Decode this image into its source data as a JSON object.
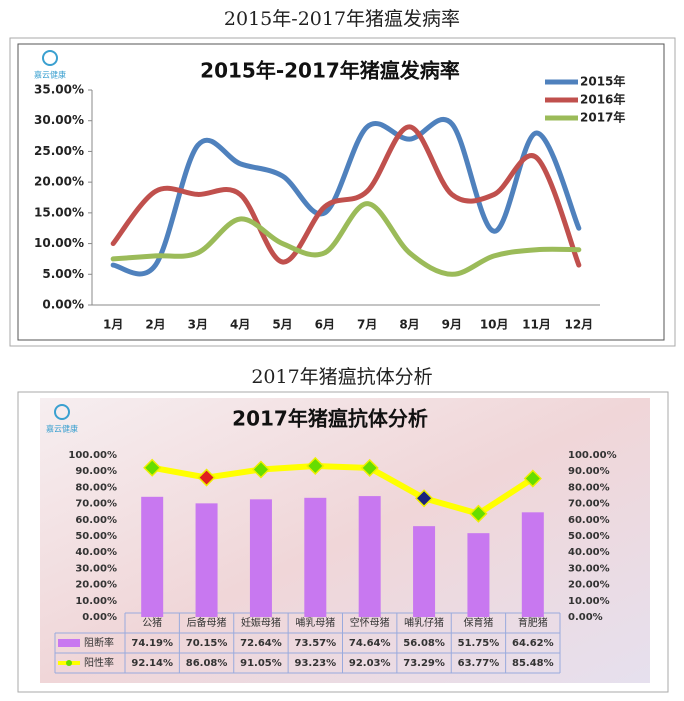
{
  "chart_data": [
    {
      "type": "line",
      "caption": "2015年-2017年猪瘟发病率",
      "title": "2015年-2017年猪瘟发病率",
      "logo_text": "嘉云健康",
      "categories": [
        "1月",
        "2月",
        "3月",
        "4月",
        "5月",
        "6月",
        "7月",
        "8月",
        "9月",
        "10月",
        "11月",
        "12月"
      ],
      "series": [
        {
          "name": "2015年",
          "color": "#4f81bd",
          "values": [
            6.5,
            6.5,
            26,
            23,
            21,
            15,
            29,
            27,
            29.5,
            12,
            28,
            12.5
          ]
        },
        {
          "name": "2016年",
          "color": "#c0504d",
          "values": [
            10,
            18.5,
            18,
            18,
            7,
            16,
            18.5,
            29,
            18,
            18,
            24,
            6.5
          ]
        },
        {
          "name": "2017年",
          "color": "#9bbb59",
          "values": [
            7.5,
            8,
            8.5,
            14,
            10,
            8.5,
            16.5,
            8.5,
            5,
            8,
            9,
            9
          ]
        }
      ],
      "ylim": [
        0,
        35
      ],
      "yticks": [
        {
          "value": 0,
          "label": "0.00%"
        },
        {
          "value": 5,
          "label": "5.00%"
        },
        {
          "value": 10,
          "label": "10.00%"
        },
        {
          "value": 15,
          "label": "15.00%"
        },
        {
          "value": 20,
          "label": "20.00%"
        },
        {
          "value": 25,
          "label": "25.00%"
        },
        {
          "value": 30,
          "label": "30.00%"
        },
        {
          "value": 35,
          "label": "35.00%"
        }
      ],
      "legend": "upper right"
    },
    {
      "type": "bar_line",
      "caption": "2017年猪瘟抗体分析",
      "title": "2017年猪瘟抗体分析",
      "logo_text": "嘉云健康",
      "categories": [
        "公猪",
        "后备母猪",
        "妊娠母猪",
        "哺乳母猪",
        "空怀母猪",
        "哺乳仔猪",
        "保育猪",
        "育肥猪"
      ],
      "series": [
        {
          "name": "阻断率",
          "type": "bar",
          "color": "#c878f0",
          "values": [
            74.19,
            70.15,
            72.64,
            73.57,
            74.64,
            56.08,
            51.75,
            64.62
          ],
          "value_labels": [
            "74.19%",
            "70.15%",
            "72.64%",
            "73.57%",
            "74.64%",
            "56.08%",
            "51.75%",
            "64.62%"
          ]
        },
        {
          "name": "阳性率",
          "type": "line",
          "color": "#ffff00",
          "axis": "y2",
          "values": [
            92.14,
            86.08,
            91.05,
            93.23,
            92.03,
            73.29,
            63.77,
            85.48
          ],
          "value_labels": [
            "92.14%",
            "86.08%",
            "91.05%",
            "93.23%",
            "92.03%",
            "73.29%",
            "63.77%",
            "85.48%"
          ],
          "marker_colors": [
            "#66dd00",
            "#e02020",
            "#66dd00",
            "#66dd00",
            "#66dd00",
            "#1a237e",
            "#66dd00",
            "#66dd00"
          ]
        }
      ],
      "ylim": [
        0,
        100
      ],
      "yticks": [
        {
          "value": 0,
          "label": "0.00%"
        },
        {
          "value": 10,
          "label": "10.00%"
        },
        {
          "value": 20,
          "label": "20.00%"
        },
        {
          "value": 30,
          "label": "30.00%"
        },
        {
          "value": 40,
          "label": "40.00%"
        },
        {
          "value": 50,
          "label": "50.00%"
        },
        {
          "value": 60,
          "label": "60.00%"
        },
        {
          "value": 70,
          "label": "70.00%"
        },
        {
          "value": 80,
          "label": "80.00%"
        },
        {
          "value": 90,
          "label": "90.00%"
        },
        {
          "value": 100,
          "label": "100.00%"
        }
      ],
      "y2lim": [
        0,
        100
      ],
      "y2ticks": [
        {
          "value": 0,
          "label": "0.00%"
        },
        {
          "value": 10,
          "label": "10.00%"
        },
        {
          "value": 20,
          "label": "20.00%"
        },
        {
          "value": 30,
          "label": "30.00%"
        },
        {
          "value": 40,
          "label": "40.00%"
        },
        {
          "value": 50,
          "label": "50.00%"
        },
        {
          "value": 60,
          "label": "60.00%"
        },
        {
          "value": 70,
          "label": "70.00%"
        },
        {
          "value": 80,
          "label": "80.00%"
        },
        {
          "value": 90,
          "label": "90.00%"
        },
        {
          "value": 100,
          "label": "100.00%"
        }
      ]
    }
  ]
}
